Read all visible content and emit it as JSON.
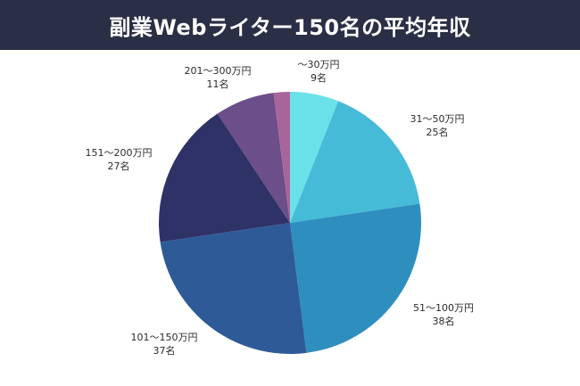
{
  "header": {
    "title": "副業Webライター150名の平均年収",
    "background": "#2b2f45"
  },
  "chart_data": {
    "type": "pie",
    "title": "副業Webライター150名の平均年収",
    "start": "12 o'clock",
    "direction": "clockwise",
    "slices": [
      {
        "label": "〜30万円",
        "value": 9,
        "value_label": "9名",
        "color": "#6ae1e8"
      },
      {
        "label": "31〜50万円",
        "value": 25,
        "value_label": "25名",
        "color": "#45bbd8"
      },
      {
        "label": "51〜100万円",
        "value": 38,
        "value_label": "38名",
        "color": "#2e8fbf"
      },
      {
        "label": "101〜150万円",
        "value": 37,
        "value_label": "37名",
        "color": "#2f5a98"
      },
      {
        "label": "151〜200万円",
        "value": 27,
        "value_label": "27名",
        "color": "#2f3266"
      },
      {
        "label": "201〜300万円",
        "value": 11,
        "value_label": "11名",
        "color": "#6c4e8a"
      },
      {
        "label": "",
        "value": 3,
        "value_label": "",
        "color": "#a8659a"
      }
    ]
  }
}
